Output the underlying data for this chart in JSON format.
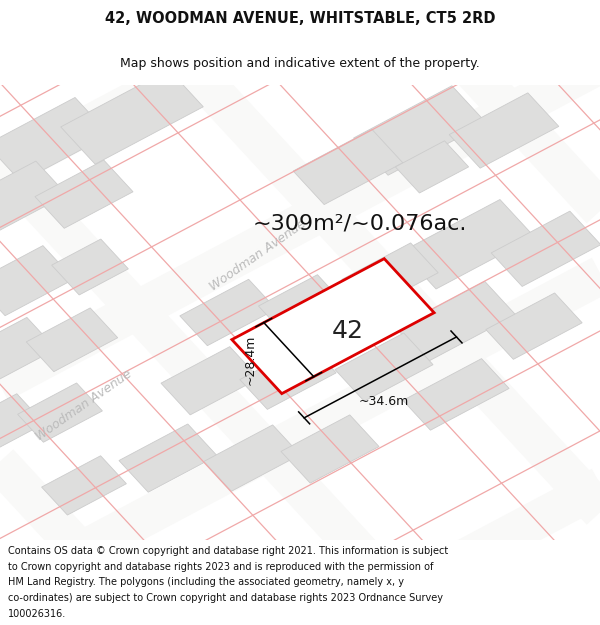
{
  "title_line1": "42, WOODMAN AVENUE, WHITSTABLE, CT5 2RD",
  "title_line2": "Map shows position and indicative extent of the property.",
  "area_text": "~309m²/~0.076ac.",
  "label_42": "42",
  "dim_width": "~34.6m",
  "dim_height": "~28.4m",
  "street_label1": "Woodman Avenue",
  "street_label2": "Woodman Avenue",
  "footer_text": "Contains OS data © Crown copyright and database right 2021. This information is subject to Crown copyright and database rights 2023 and is reproduced with the permission of HM Land Registry. The polygons (including the associated geometry, namely x, y co-ordinates) are subject to Crown copyright and database rights 2023 Ordnance Survey 100026316.",
  "bg_color": "#ffffff",
  "map_bg": "#f7f7f5",
  "road_bg": "#ffffff",
  "building_fill": "#dededd",
  "building_edge": "#cccccc",
  "road_line_color": "#f0a8a8",
  "property_fill": "#ffffff",
  "property_edge": "#dd0000",
  "title_fontsize": 10.5,
  "subtitle_fontsize": 9,
  "area_fontsize": 16,
  "label_fontsize": 18,
  "dim_fontsize": 9,
  "street_fontsize": 9,
  "footer_fontsize": 7
}
